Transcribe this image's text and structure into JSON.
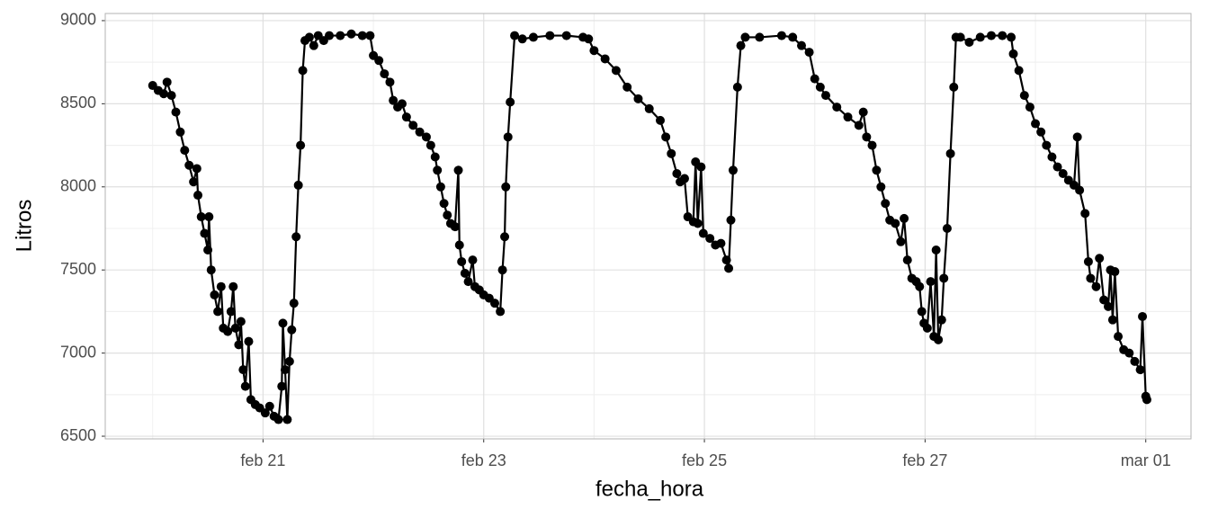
{
  "chart_data": {
    "type": "line",
    "markers": true,
    "color": "#000000",
    "x_label": "fecha_hora",
    "y_label": "Litros",
    "grid": true,
    "xlim": [
      19.57,
      29.41
    ],
    "ylim": [
      6484,
      9043
    ],
    "xticks": [
      {
        "value": 21,
        "label": "feb 21"
      },
      {
        "value": 23,
        "label": "feb 23"
      },
      {
        "value": 25,
        "label": "feb 25"
      },
      {
        "value": 27,
        "label": "feb 27"
      },
      {
        "value": 29,
        "label": "mar 01"
      }
    ],
    "yticks": [
      6500,
      7000,
      7500,
      8000,
      8500,
      9000
    ],
    "x": [
      20.0,
      20.05,
      20.1,
      20.13,
      20.17,
      20.21,
      20.25,
      20.29,
      20.33,
      20.37,
      20.4,
      20.41,
      20.44,
      20.47,
      20.5,
      20.51,
      20.53,
      20.56,
      20.59,
      20.62,
      20.64,
      20.68,
      20.71,
      20.73,
      20.75,
      20.78,
      20.8,
      20.82,
      20.84,
      20.87,
      20.89,
      20.93,
      20.97,
      21.02,
      21.06,
      21.1,
      21.14,
      21.17,
      21.18,
      21.2,
      21.22,
      21.24,
      21.26,
      21.28,
      21.3,
      21.32,
      21.34,
      21.36,
      21.38,
      21.42,
      21.46,
      21.5,
      21.55,
      21.6,
      21.7,
      21.8,
      21.9,
      21.97,
      22.0,
      22.05,
      22.1,
      22.15,
      22.18,
      22.22,
      22.26,
      22.3,
      22.36,
      22.42,
      22.48,
      22.52,
      22.56,
      22.58,
      22.61,
      22.64,
      22.67,
      22.7,
      22.74,
      22.77,
      22.78,
      22.8,
      22.83,
      22.86,
      22.9,
      22.92,
      22.96,
      23.0,
      23.05,
      23.1,
      23.15,
      23.17,
      23.19,
      23.2,
      23.22,
      23.24,
      23.28,
      23.35,
      23.45,
      23.6,
      23.75,
      23.9,
      23.95,
      24.0,
      24.1,
      24.2,
      24.3,
      24.4,
      24.5,
      24.6,
      24.65,
      24.7,
      24.75,
      24.78,
      24.82,
      24.85,
      24.9,
      24.92,
      24.94,
      24.97,
      24.99,
      25.05,
      25.1,
      25.15,
      25.2,
      25.22,
      25.24,
      25.26,
      25.3,
      25.33,
      25.37,
      25.5,
      25.7,
      25.8,
      25.88,
      25.95,
      26.0,
      26.05,
      26.1,
      26.2,
      26.3,
      26.4,
      26.44,
      26.47,
      26.52,
      26.56,
      26.6,
      26.64,
      26.68,
      26.73,
      26.78,
      26.81,
      26.84,
      26.88,
      26.92,
      26.95,
      26.97,
      26.99,
      27.02,
      27.05,
      27.08,
      27.1,
      27.12,
      27.15,
      27.17,
      27.2,
      27.23,
      27.26,
      27.28,
      27.32,
      27.4,
      27.5,
      27.6,
      27.7,
      27.78,
      27.8,
      27.85,
      27.9,
      27.95,
      28.0,
      28.05,
      28.1,
      28.15,
      28.2,
      28.25,
      28.3,
      28.35,
      28.38,
      28.4,
      28.45,
      28.48,
      28.5,
      28.55,
      28.58,
      28.62,
      28.66,
      28.68,
      28.7,
      28.72,
      28.75,
      28.8,
      28.85,
      28.9,
      28.95,
      28.97,
      29.0,
      29.01
    ],
    "values": [
      8610,
      8580,
      8560,
      8630,
      8550,
      8450,
      8330,
      8220,
      8130,
      8030,
      8110,
      7950,
      7820,
      7720,
      7620,
      7820,
      7500,
      7350,
      7250,
      7400,
      7150,
      7130,
      7250,
      7400,
      7150,
      7050,
      7190,
      6900,
      6800,
      7070,
      6720,
      6690,
      6670,
      6640,
      6680,
      6620,
      6600,
      6800,
      7180,
      6900,
      6600,
      6950,
      7140,
      7300,
      7700,
      8010,
      8250,
      8700,
      8880,
      8900,
      8850,
      8910,
      8880,
      8910,
      8910,
      8920,
      8910,
      8910,
      8790,
      8760,
      8680,
      8630,
      8520,
      8480,
      8500,
      8420,
      8370,
      8330,
      8300,
      8250,
      8180,
      8100,
      8000,
      7900,
      7830,
      7780,
      7760,
      8100,
      7650,
      7550,
      7480,
      7430,
      7560,
      7400,
      7380,
      7350,
      7330,
      7300,
      7250,
      7500,
      7700,
      8000,
      8300,
      8510,
      8910,
      8890,
      8900,
      8910,
      8910,
      8900,
      8890,
      8820,
      8770,
      8700,
      8600,
      8530,
      8470,
      8400,
      8300,
      8200,
      8080,
      8030,
      8050,
      7820,
      7790,
      8150,
      7780,
      8120,
      7720,
      7690,
      7650,
      7660,
      7560,
      7510,
      7800,
      8100,
      8600,
      8850,
      8900,
      8900,
      8910,
      8900,
      8850,
      8810,
      8650,
      8600,
      8550,
      8480,
      8420,
      8370,
      8450,
      8300,
      8250,
      8100,
      8000,
      7900,
      7800,
      7780,
      7670,
      7810,
      7560,
      7450,
      7430,
      7400,
      7250,
      7180,
      7150,
      7430,
      7100,
      7620,
      7080,
      7200,
      7450,
      7750,
      8200,
      8600,
      8900,
      8900,
      8870,
      8900,
      8910,
      8910,
      8900,
      8800,
      8700,
      8550,
      8480,
      8380,
      8330,
      8250,
      8180,
      8120,
      8080,
      8040,
      8010,
      8300,
      7980,
      7840,
      7550,
      7450,
      7400,
      7570,
      7320,
      7280,
      7500,
      7200,
      7490,
      7100,
      7020,
      7000,
      6950,
      6900,
      7220,
      6740,
      6720
    ]
  }
}
